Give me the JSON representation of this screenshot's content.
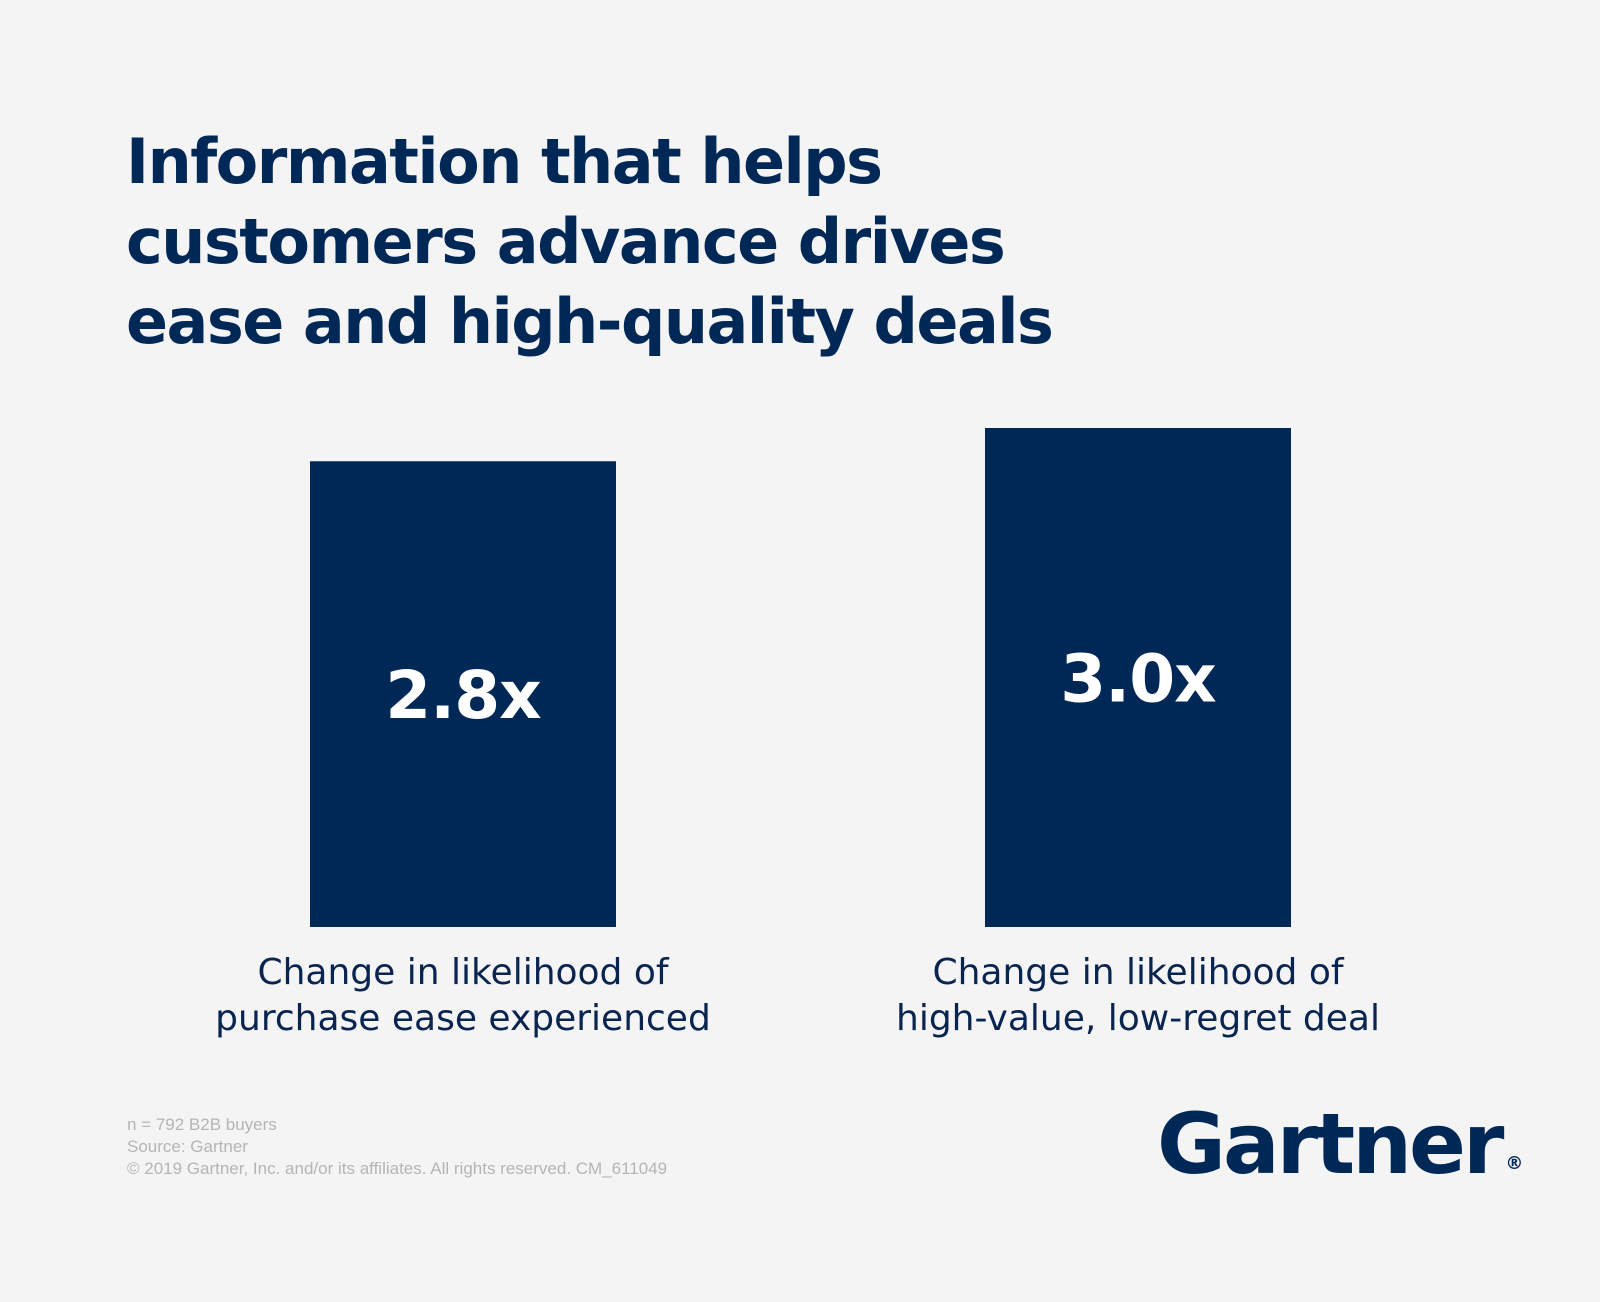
{
  "title": {
    "lines": [
      "Information that helps",
      "customers advance drives",
      "ease and high-quality deals"
    ]
  },
  "chart_data": {
    "type": "bar",
    "categories": [
      [
        "Change in likelihood of",
        "purchase ease experienced"
      ],
      [
        "Change in likelihood of",
        "high-value, low-regret deal"
      ]
    ],
    "values": [
      2.8,
      3.0
    ],
    "value_labels": [
      "2.8x",
      "3.0x"
    ],
    "title": "Information that helps customers advance drives ease and high-quality deals",
    "xlabel": "",
    "ylabel": "",
    "ylim": [
      0,
      3.0
    ],
    "grid": false,
    "bar_color": "#002856",
    "value_label_color": "#ffffff"
  },
  "footnote": {
    "sample": "n = 792 B2B buyers",
    "source": "Source: Gartner",
    "copyright": "© 2019 Gartner, Inc. and/or its affiliates. All rights reserved. CM_611049"
  },
  "logo": {
    "text": "Gartner",
    "mark": "®"
  }
}
